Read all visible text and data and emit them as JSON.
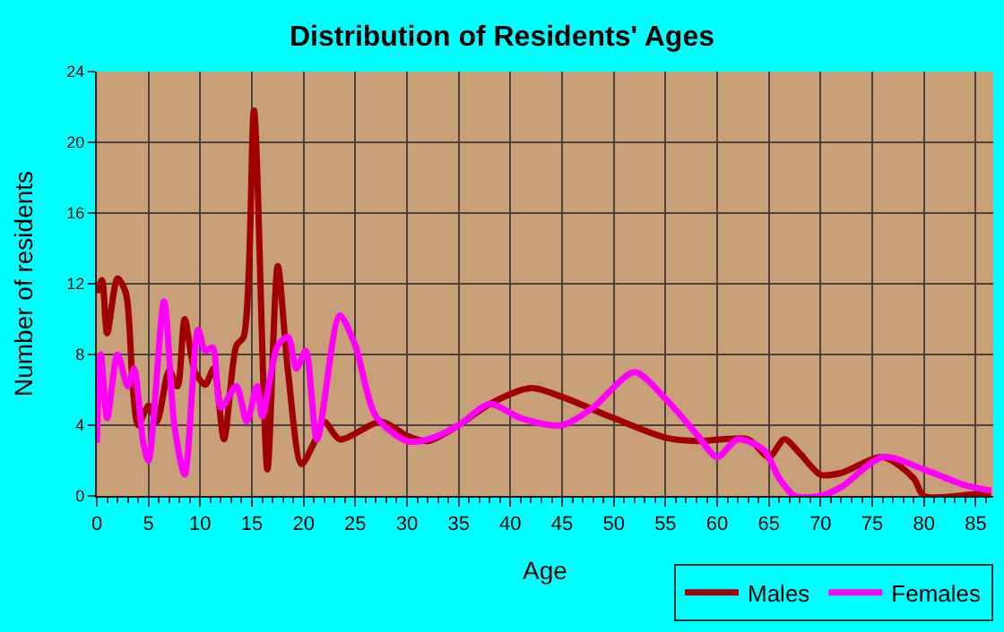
{
  "chart_data": {
    "type": "line",
    "title": "Distribution of Residents' Ages",
    "xlabel": "Age",
    "ylabel": "Number of residents",
    "xlim": [
      0,
      86.7
    ],
    "xticks": [
      0,
      5,
      10,
      15,
      20,
      25,
      30,
      35,
      40,
      45,
      50,
      55,
      60,
      65,
      70,
      75,
      80,
      85
    ],
    "ylim": [
      0,
      24
    ],
    "yticks": [
      0,
      4,
      8,
      12,
      16,
      20,
      24
    ],
    "grid": true,
    "legend": "bottom right",
    "marker": "none",
    "line_style": "solid",
    "series": [
      {
        "name": "Males",
        "color": "#a00000",
        "x": [
          0,
          0.5,
          1,
          2,
          2.8,
          3.5,
          4,
          5,
          5.8,
          7,
          7.8,
          8.5,
          9.5,
          10.5,
          11.3,
          12.3,
          13.5,
          14.2,
          15.2,
          16.5,
          17.5,
          18.5,
          19.8,
          21,
          22,
          23.5,
          27.5,
          30,
          32,
          35,
          38,
          42,
          45,
          50,
          55,
          58,
          63,
          65,
          66.5,
          68,
          70,
          72,
          76,
          79,
          80,
          85,
          86.5
        ],
        "values": [
          11.5,
          12.2,
          9.2,
          12.3,
          11.5,
          6,
          4,
          5.1,
          4.2,
          7.1,
          6.2,
          10,
          7,
          6.3,
          7.2,
          3.2,
          8.5,
          9,
          21.8,
          1.5,
          13,
          7,
          1.8,
          3,
          4.2,
          3.2,
          4.2,
          3.4,
          3.1,
          4,
          5.2,
          6.1,
          5.6,
          4.4,
          3.3,
          3.1,
          3.2,
          2.2,
          3.2,
          2.4,
          1.2,
          1.3,
          2.2,
          1,
          0,
          0.1,
          0.1
        ]
      },
      {
        "name": "Females",
        "color": "#ff00ff",
        "x": [
          0,
          0.4,
          1,
          2,
          3,
          3.6,
          4.5,
          5,
          6.5,
          7.5,
          8.5,
          9.8,
          10.5,
          11.2,
          12,
          13.5,
          14.5,
          15.5,
          16,
          17.5,
          18.5,
          19.3,
          20.2,
          21.3,
          23.5,
          25,
          27,
          30,
          32,
          35,
          38,
          41,
          45,
          48,
          52,
          55,
          58,
          60,
          62,
          64.5,
          66,
          67.5,
          70,
          72,
          76,
          80,
          84,
          86.5
        ],
        "values": [
          3,
          8,
          4.4,
          8,
          6.2,
          7.2,
          3,
          2,
          11,
          4,
          1.2,
          9.4,
          8.2,
          8.4,
          5,
          6.2,
          4.2,
          6.2,
          4.5,
          8.5,
          9,
          7.2,
          8.2,
          3.2,
          10.2,
          8.5,
          4.5,
          3.1,
          3.2,
          4,
          5.2,
          4.4,
          4,
          5,
          7,
          5.5,
          3.5,
          2.2,
          3.2,
          2.6,
          1,
          0,
          0,
          0.5,
          2.2,
          1.5,
          0.6,
          0.3
        ]
      }
    ]
  }
}
